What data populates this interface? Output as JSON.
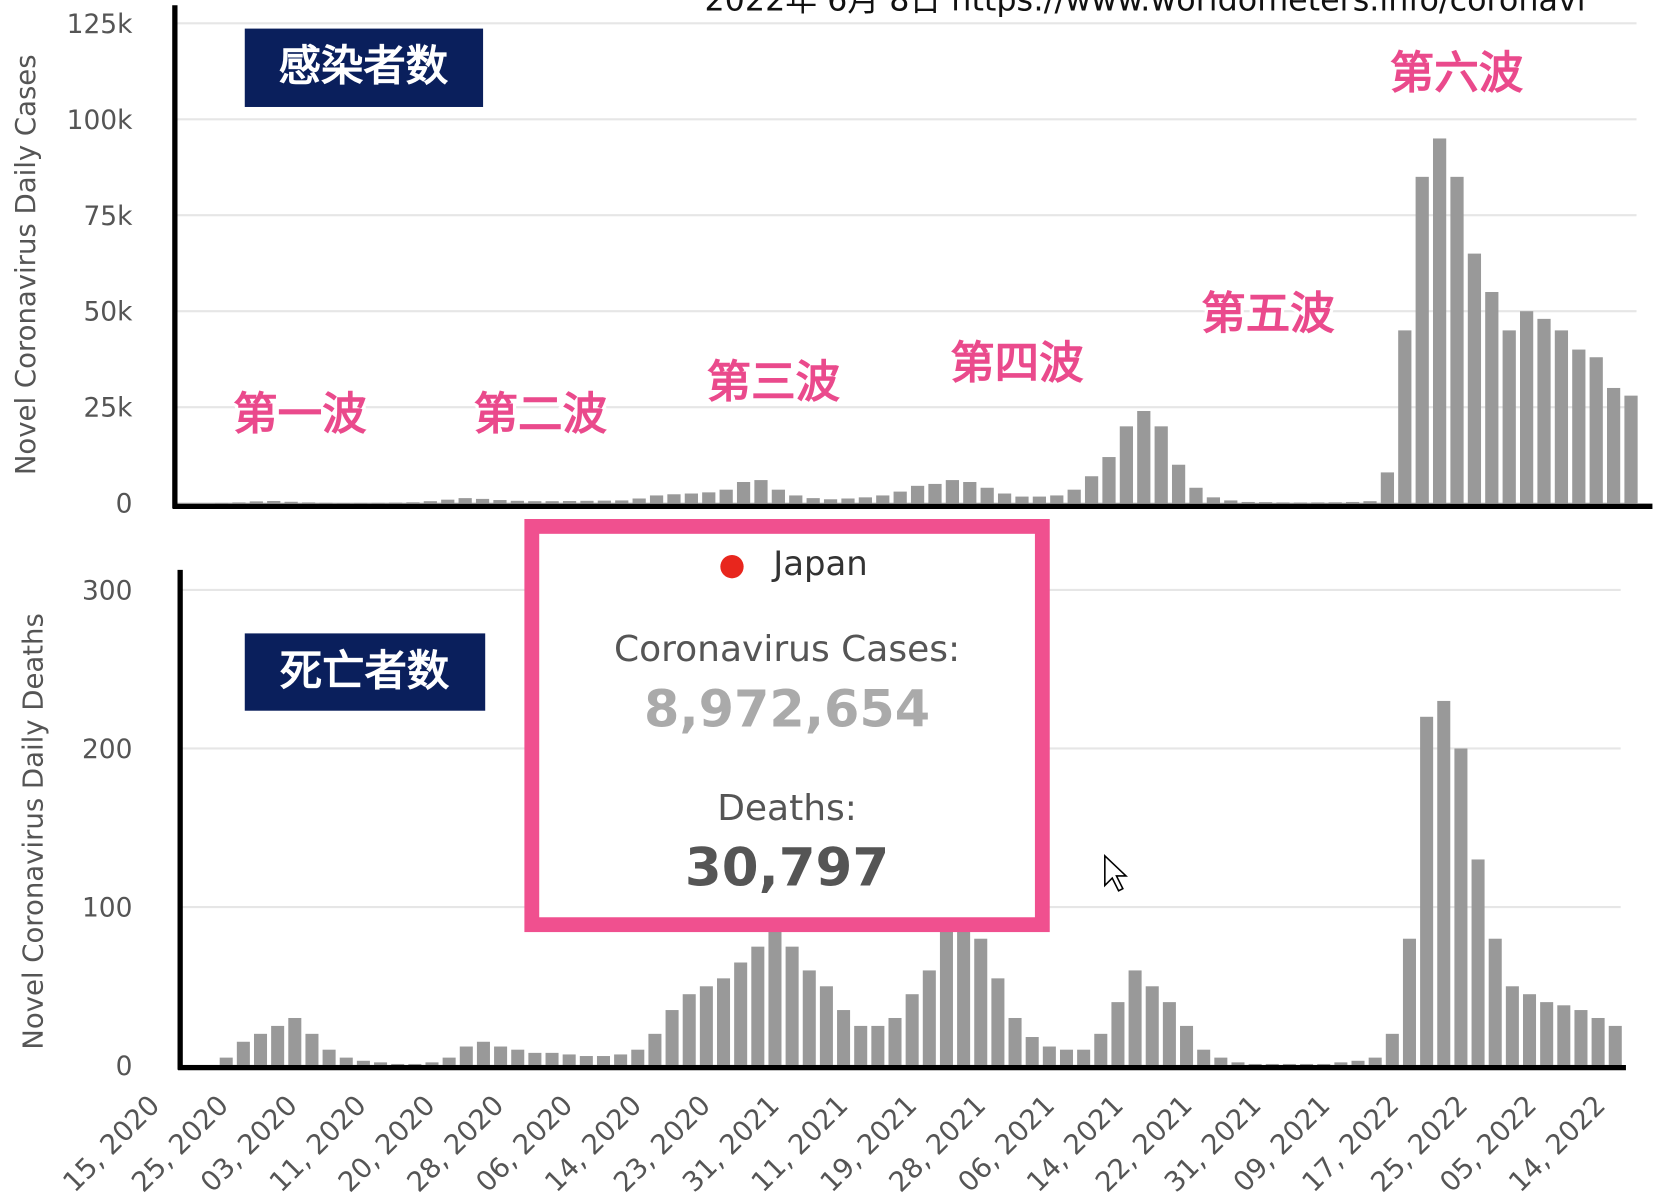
{
  "header": "2022年  6月 8日   https://www.worldometers.info/coronavi",
  "chart_data": [
    {
      "type": "bar",
      "title": "感染者数",
      "y_label": "Novel Coronavirus Daily Cases",
      "color": "#999999",
      "grid": true,
      "ylim": [
        0,
        125000
      ],
      "yticks": [
        0,
        {
          "value": 25000,
          "label": "25k"
        },
        {
          "value": 50000,
          "label": "50k"
        },
        {
          "value": 75000,
          "label": "75k"
        },
        {
          "value": 100000,
          "label": "100k"
        },
        {
          "value": 125000,
          "label": "125k"
        }
      ],
      "annotations": [
        "第一波",
        "第二波",
        "第三波",
        "第四波",
        "第五波",
        "第六波"
      ],
      "values": [
        0,
        0,
        40,
        150,
        450,
        550,
        350,
        150,
        60,
        30,
        40,
        50,
        100,
        200,
        500,
        900,
        1300,
        1100,
        800,
        600,
        500,
        500,
        550,
        600,
        650,
        700,
        1200,
        2000,
        2300,
        2500,
        2800,
        3500,
        5500,
        6000,
        3500,
        2000,
        1300,
        1000,
        1200,
        1500,
        2000,
        3000,
        4500,
        5000,
        6000,
        5500,
        4000,
        2500,
        1700,
        1700,
        2000,
        3500,
        7000,
        12000,
        20000,
        24000,
        20000,
        10000,
        4000,
        1500,
        700,
        300,
        250,
        150,
        120,
        150,
        200,
        300,
        500,
        8000,
        45000,
        85000,
        95000,
        85000,
        65000,
        55000,
        45000,
        50000,
        48000,
        45000,
        40000,
        38000,
        30000,
        28000
      ]
    },
    {
      "type": "bar",
      "title": "死亡者数",
      "y_label": "Novel Coronavirus Daily Deaths",
      "color": "#999999",
      "grid": true,
      "ylim": [
        0,
        300
      ],
      "yticks": [
        0,
        100,
        200,
        300
      ],
      "x_labels": [
        "15, 2020",
        "25, 2020",
        "03, 2020",
        "11, 2020",
        "20, 2020",
        "28, 2020",
        "06, 2020",
        "14, 2020",
        "23, 2020",
        "31, 2021",
        "11, 2021",
        "19, 2021",
        "28, 2021",
        "06, 2021",
        "14, 2021",
        "22, 2021",
        "31, 2021",
        "09, 2021",
        "17, 2022",
        "25, 2022",
        "05, 2022",
        "14, 2022"
      ],
      "values": [
        0,
        0,
        5,
        15,
        20,
        25,
        30,
        20,
        10,
        5,
        3,
        2,
        1,
        1,
        2,
        5,
        12,
        15,
        12,
        10,
        8,
        8,
        7,
        6,
        6,
        7,
        10,
        20,
        35,
        45,
        50,
        55,
        65,
        75,
        85,
        75,
        60,
        50,
        35,
        25,
        25,
        30,
        45,
        60,
        85,
        95,
        80,
        55,
        30,
        18,
        12,
        10,
        10,
        20,
        40,
        60,
        50,
        40,
        25,
        10,
        5,
        2,
        1,
        1,
        1,
        1,
        1,
        2,
        3,
        5,
        20,
        80,
        220,
        230,
        200,
        130,
        80,
        50,
        45,
        40,
        38,
        35,
        30,
        25
      ]
    }
  ],
  "tooltip": {
    "country": "Japan",
    "cases_label": "Coronavirus Cases:",
    "cases": "8,972,654",
    "deaths_label": "Deaths:",
    "deaths": "30,797"
  }
}
